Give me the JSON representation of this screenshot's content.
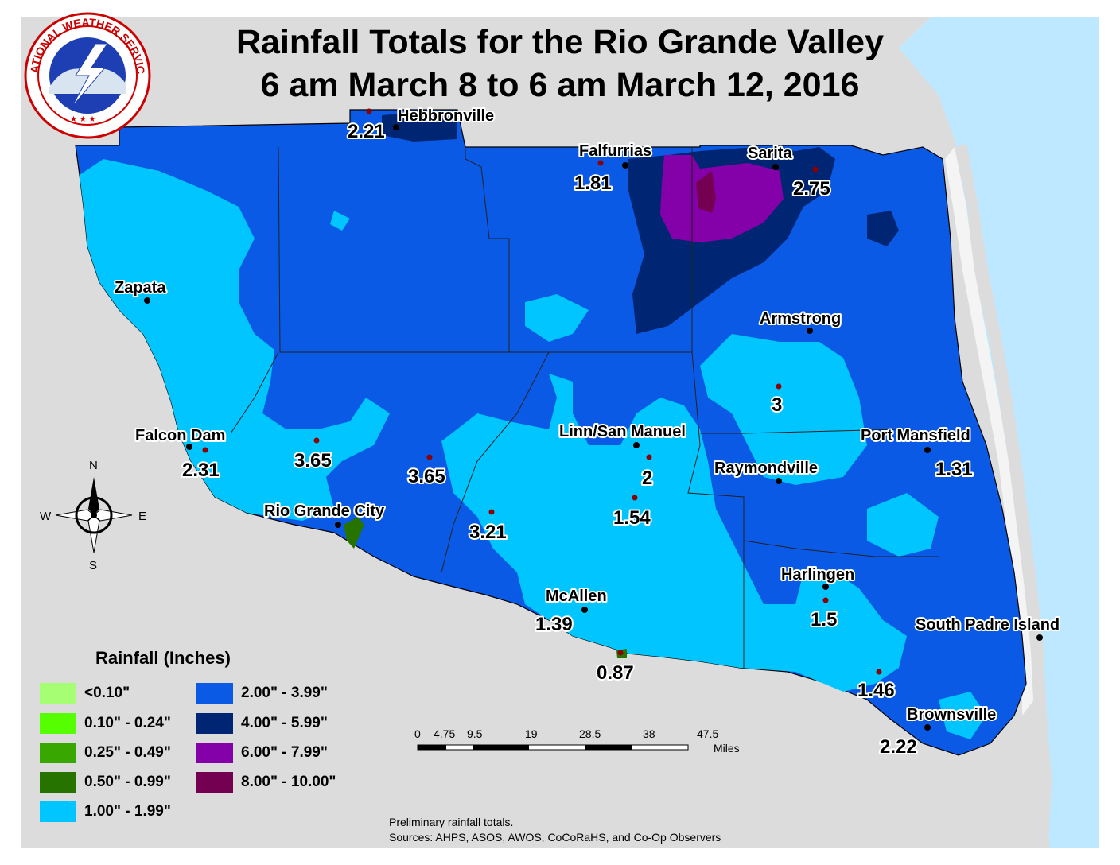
{
  "title": {
    "line1": "Rainfall Totals for the Rio Grande Valley",
    "line2": "6 am March 8 to 6 am March 12, 2016"
  },
  "logo": {
    "text": "NATIONAL WEATHER SERVICE"
  },
  "places": [
    {
      "name": "Hebbronville"
    },
    {
      "name": "Falfurrias"
    },
    {
      "name": "Sarita"
    },
    {
      "name": "Zapata"
    },
    {
      "name": "Armstrong"
    },
    {
      "name": "Falcon Dam"
    },
    {
      "name": "Linn/San Manuel"
    },
    {
      "name": "Port Mansfield"
    },
    {
      "name": "Raymondville"
    },
    {
      "name": "Rio Grande City"
    },
    {
      "name": "Harlingen"
    },
    {
      "name": "McAllen"
    },
    {
      "name": "South Padre Island"
    },
    {
      "name": "Brownsville"
    }
  ],
  "observations": [
    {
      "value": "2.21"
    },
    {
      "value": "1.81"
    },
    {
      "value": "2.75"
    },
    {
      "value": "3"
    },
    {
      "value": "2.31"
    },
    {
      "value": "3.65"
    },
    {
      "value": "3.65"
    },
    {
      "value": "2"
    },
    {
      "value": "1.31"
    },
    {
      "value": "1.54"
    },
    {
      "value": "3.21"
    },
    {
      "value": "1.5"
    },
    {
      "value": "1.39"
    },
    {
      "value": "0.87"
    },
    {
      "value": "1.46"
    },
    {
      "value": "2.22"
    }
  ],
  "compass": {
    "n": "N",
    "s": "S",
    "e": "E",
    "w": "W"
  },
  "legend": {
    "title": "Rainfall (Inches)",
    "items": [
      {
        "label": "<0.10\"",
        "color": "#a6ff73"
      },
      {
        "label": "0.10\" - 0.24\"",
        "color": "#55ff00"
      },
      {
        "label": "0.25\" - 0.49\"",
        "color": "#38a800"
      },
      {
        "label": "0.50\" - 0.99\"",
        "color": "#267300"
      },
      {
        "label": "1.00\" - 1.99\"",
        "color": "#00c5ff"
      },
      {
        "label": "2.00\" - 3.99\"",
        "color": "#0a5ae6"
      },
      {
        "label": "4.00\" - 5.99\"",
        "color": "#002673"
      },
      {
        "label": "6.00\" - 7.99\"",
        "color": "#8400a8"
      },
      {
        "label": "8.00\" - 10.00\"",
        "color": "#730050"
      }
    ]
  },
  "scalebar": {
    "ticks": [
      "0",
      "4.75",
      "9.5",
      "19",
      "28.5",
      "38",
      "47.5"
    ],
    "unit": "Miles"
  },
  "notes": {
    "line1": "Preliminary rainfall totals.",
    "line2": "Sources: AHPS, ASOS, AWOS, CoCoRaHS, and Co-Op Observers"
  },
  "colors": {
    "land": "#dcdcdc",
    "water": "#bee8ff",
    "border": "#000000"
  }
}
